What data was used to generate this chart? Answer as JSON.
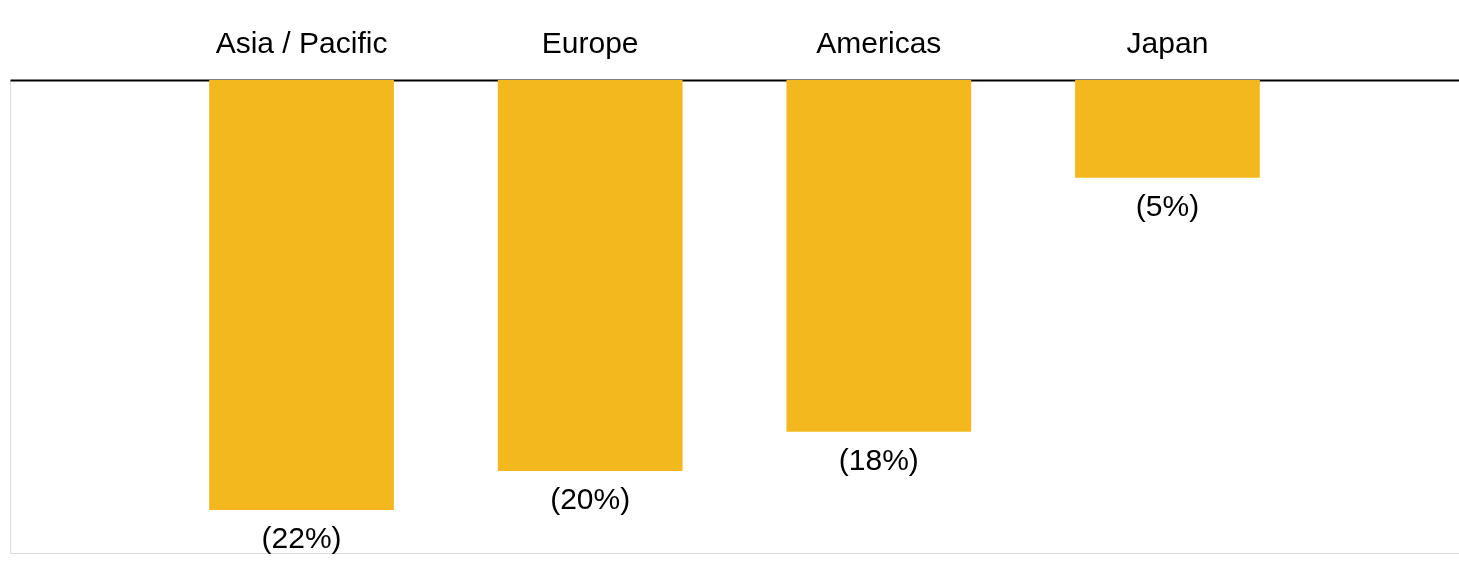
{
  "chart_data": {
    "type": "bar",
    "categories": [
      "Asia / Pacific",
      "Europe",
      "Americas",
      "Japan"
    ],
    "values": [
      -22,
      -20,
      -18,
      -5
    ],
    "value_labels": [
      "(22%)",
      "(20%)",
      "(18%)",
      "(5%)"
    ],
    "color": "#f4b81f"
  }
}
